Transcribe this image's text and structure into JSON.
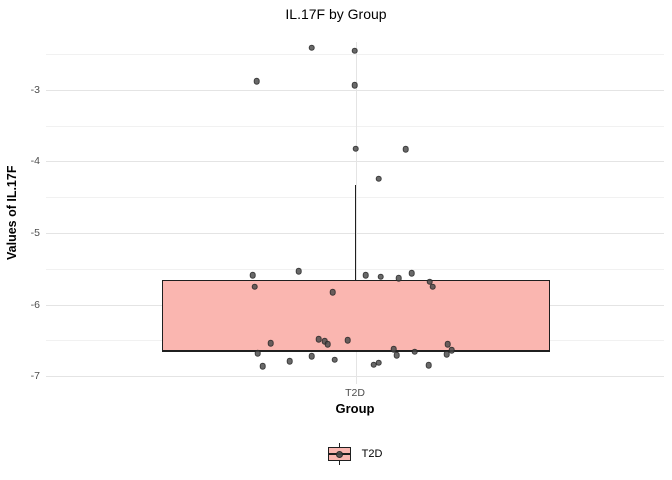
{
  "chart_data": {
    "type": "boxplot",
    "title": "IL.17F by Group",
    "xlabel": "Group",
    "ylabel": "Values of IL.17F",
    "categories": [
      "T2D"
    ],
    "ylim": [
      -7.11,
      -2.33
    ],
    "yticks_major": [
      -3,
      -4,
      -5,
      -6,
      -7
    ],
    "yticks_minor": [
      -2.5,
      -3.5,
      -4.5,
      -5.5,
      -6.5
    ],
    "grid": "on",
    "legend": {
      "label": "T2D",
      "position": "bottom"
    },
    "box": {
      "group": "T2D",
      "q1": -6.65,
      "median": -6.65,
      "q3": -5.66,
      "whisker_high": -4.33,
      "whisker_low": -6.65
    },
    "points": [
      {
        "dx": -44,
        "y": -2.41
      },
      {
        "dx": -1,
        "y": -2.45
      },
      {
        "dx": -99,
        "y": -2.88
      },
      {
        "dx": -1,
        "y": -2.93
      },
      {
        "dx": 0,
        "y": -3.82
      },
      {
        "dx": 50,
        "y": -3.83
      },
      {
        "dx": 23,
        "y": -4.24
      },
      {
        "dx": -103,
        "y": -5.59
      },
      {
        "dx": -57,
        "y": -5.53
      },
      {
        "dx": -101,
        "y": -5.75
      },
      {
        "dx": -23,
        "y": -5.83
      },
      {
        "dx": 10,
        "y": -5.59
      },
      {
        "dx": 25,
        "y": -5.61
      },
      {
        "dx": 43,
        "y": -5.63
      },
      {
        "dx": 56,
        "y": -5.56
      },
      {
        "dx": 74,
        "y": -5.68
      },
      {
        "dx": 77,
        "y": -5.75
      },
      {
        "dx": -85,
        "y": -6.54
      },
      {
        "dx": -98,
        "y": -6.68
      },
      {
        "dx": -93,
        "y": -6.86
      },
      {
        "dx": -66,
        "y": -6.79
      },
      {
        "dx": -44,
        "y": -6.72
      },
      {
        "dx": -37,
        "y": -6.48
      },
      {
        "dx": -31,
        "y": -6.51
      },
      {
        "dx": -28,
        "y": -6.55
      },
      {
        "dx": -8,
        "y": -6.5
      },
      {
        "dx": -21,
        "y": -6.77
      },
      {
        "dx": 18,
        "y": -6.84
      },
      {
        "dx": 23,
        "y": -6.81
      },
      {
        "dx": 38,
        "y": -6.62
      },
      {
        "dx": 41,
        "y": -6.71
      },
      {
        "dx": 59,
        "y": -6.66
      },
      {
        "dx": 73,
        "y": -6.85
      },
      {
        "dx": 92,
        "y": -6.55
      },
      {
        "dx": 96,
        "y": -6.64
      },
      {
        "dx": 91,
        "y": -6.69
      }
    ],
    "colors": {
      "box_fill": "#fab6b0",
      "box_border": "#1f1f1f",
      "point": "#484848",
      "grid_major": "#e4e4e4",
      "grid_minor": "#f1f1f1",
      "tick_label": "#4d4d4d"
    }
  }
}
